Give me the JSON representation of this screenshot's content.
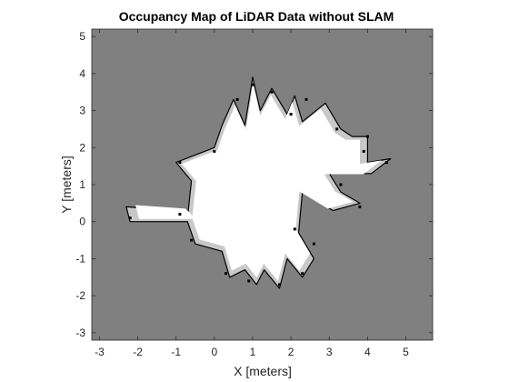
{
  "chart_data": {
    "type": "heatmap",
    "title": "Occupancy Map of LiDAR Data without SLAM",
    "xlabel": "X [meters]",
    "ylabel": "Y [meters]",
    "xlim": [
      -3.2,
      5.7
    ],
    "ylim": [
      -3.2,
      5.2
    ],
    "xticks": [
      "-3",
      "-2",
      "-1",
      "0",
      "1",
      "2",
      "3",
      "4",
      "5"
    ],
    "yticks": [
      "5",
      "4",
      "3",
      "2",
      "1",
      "0",
      "-1",
      "-2",
      "-3"
    ],
    "grid": false,
    "colormap": "gray",
    "colors": {
      "unknown": "#808080",
      "free": "#ffffff",
      "partial": "#c8c8c8",
      "occupied": "#000000",
      "axis": "#262626"
    },
    "free_region": [
      [
        -2.3,
        0.4
      ],
      [
        -0.9,
        0.3
      ],
      [
        -0.7,
        0.1
      ],
      [
        -0.6,
        1.1
      ],
      [
        -1.0,
        1.6
      ],
      [
        0.0,
        2.0
      ],
      [
        0.2,
        2.6
      ],
      [
        0.5,
        3.3
      ],
      [
        0.8,
        2.6
      ],
      [
        1.0,
        3.9
      ],
      [
        1.2,
        3.0
      ],
      [
        1.5,
        3.6
      ],
      [
        1.9,
        2.9
      ],
      [
        2.1,
        3.4
      ],
      [
        2.3,
        2.7
      ],
      [
        2.9,
        3.2
      ],
      [
        3.3,
        2.5
      ],
      [
        3.6,
        2.3
      ],
      [
        4.0,
        2.3
      ],
      [
        4.0,
        1.6
      ],
      [
        4.6,
        1.7
      ],
      [
        4.1,
        1.3
      ],
      [
        3.0,
        1.3
      ],
      [
        3.3,
        0.8
      ],
      [
        3.8,
        0.5
      ],
      [
        3.1,
        0.3
      ],
      [
        2.3,
        0.8
      ],
      [
        2.2,
        -0.3
      ],
      [
        2.6,
        -1.0
      ],
      [
        2.3,
        -1.5
      ],
      [
        1.9,
        -1.0
      ],
      [
        1.7,
        -1.8
      ],
      [
        1.3,
        -1.3
      ],
      [
        1.1,
        -1.7
      ],
      [
        0.8,
        -1.3
      ],
      [
        0.4,
        -1.5
      ],
      [
        0.2,
        -0.8
      ],
      [
        -0.5,
        -0.6
      ],
      [
        -0.7,
        0.0
      ],
      [
        -2.2,
        0.0
      ]
    ],
    "occupied_points": [
      [
        0.6,
        3.3
      ],
      [
        1.0,
        3.7
      ],
      [
        1.5,
        3.5
      ],
      [
        2.0,
        2.9
      ],
      [
        2.4,
        3.3
      ],
      [
        3.2,
        2.5
      ],
      [
        4.0,
        2.3
      ],
      [
        3.9,
        1.9
      ],
      [
        4.5,
        1.6
      ],
      [
        3.8,
        0.4
      ],
      [
        2.6,
        -0.6
      ],
      [
        2.3,
        -1.4
      ],
      [
        1.7,
        -1.7
      ],
      [
        0.9,
        -1.6
      ],
      [
        0.3,
        -1.4
      ],
      [
        -0.6,
        -0.5
      ],
      [
        -0.9,
        0.2
      ],
      [
        -2.2,
        0.1
      ],
      [
        -0.9,
        1.6
      ],
      [
        0.0,
        1.9
      ],
      [
        3.3,
        1.0
      ],
      [
        2.1,
        -0.2
      ]
    ]
  }
}
